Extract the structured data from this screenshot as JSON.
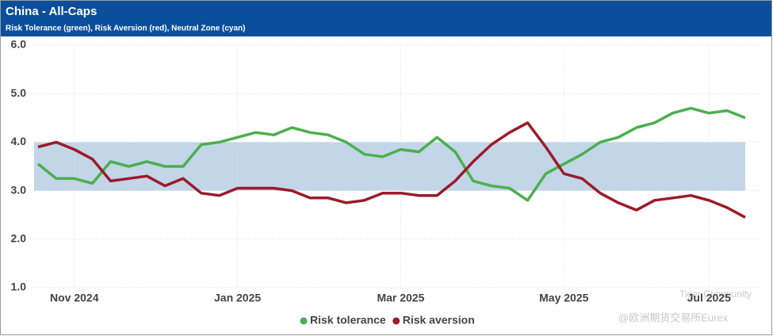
{
  "chart_data": {
    "type": "line",
    "title": "China - All-Caps",
    "subtitle": "Risk Tolerance (green), Risk Aversion (red), Neutral Zone (cyan)",
    "categories": [
      null,
      null,
      "Nov 2024",
      null,
      null,
      null,
      null,
      null,
      null,
      null,
      null,
      "Jan 2025",
      null,
      null,
      null,
      null,
      null,
      null,
      null,
      null,
      "Mar 2025",
      null,
      null,
      null,
      null,
      null,
      null,
      null,
      null,
      "May 2025",
      null,
      null,
      null,
      null,
      null,
      null,
      null,
      "Jul 2025",
      null,
      null
    ],
    "series": [
      {
        "name": "Risk tolerance",
        "color": "#4caf50",
        "values": [
          3.55,
          3.25,
          3.25,
          3.15,
          3.6,
          3.5,
          3.6,
          3.5,
          3.5,
          3.95,
          4.0,
          4.1,
          4.2,
          4.15,
          4.3,
          4.2,
          4.15,
          4.0,
          3.75,
          3.7,
          3.85,
          3.8,
          4.1,
          3.8,
          3.2,
          3.1,
          3.05,
          2.8,
          3.35,
          3.55,
          3.75,
          4.0,
          4.1,
          4.3,
          4.4,
          4.6,
          4.7,
          4.6,
          4.65,
          4.5
        ]
      },
      {
        "name": "Risk aversion",
        "color": "#9b1b2a",
        "values": [
          3.9,
          4.0,
          3.85,
          3.65,
          3.2,
          3.25,
          3.3,
          3.1,
          3.25,
          2.95,
          2.9,
          3.05,
          3.05,
          3.05,
          3.0,
          2.85,
          2.85,
          2.75,
          2.8,
          2.95,
          2.95,
          2.9,
          2.9,
          3.2,
          3.6,
          3.95,
          4.2,
          4.4,
          3.9,
          3.35,
          3.25,
          2.95,
          2.75,
          2.6,
          2.8,
          2.85,
          2.9,
          2.8,
          2.65,
          2.45
        ]
      }
    ],
    "neutral_zone": [
      3,
      4
    ],
    "neutral_zone_color": "#c2d6e8",
    "ylim": [
      1,
      6
    ],
    "yticks": [
      {
        "value": 1,
        "label": "1.0"
      },
      {
        "value": 2,
        "label": "2.0"
      },
      {
        "value": 3,
        "label": "3.0"
      },
      {
        "value": 4,
        "label": "4.0"
      },
      {
        "value": 5,
        "label": "5.0"
      },
      {
        "value": 6,
        "label": "6.0"
      }
    ],
    "grid": true,
    "legend": "bottom",
    "watermark": [
      "Tiger Community",
      "@欧洲期货交易所Eurex"
    ]
  }
}
